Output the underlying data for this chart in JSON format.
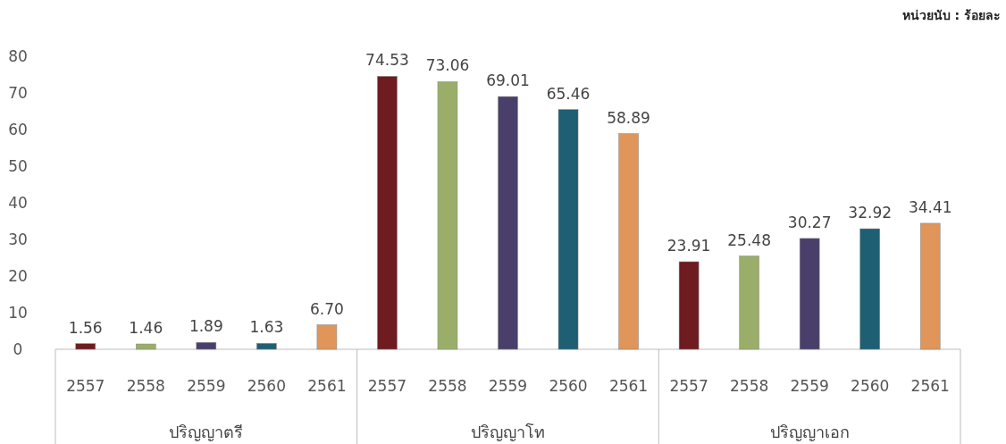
{
  "chart_data": {
    "type": "bar",
    "categories": [
      "ปริญญาตรี",
      "ปริญญาโท",
      "ปริญญาเอก"
    ],
    "series": [
      {
        "name": "2557",
        "color": "#6e1c1f",
        "values": [
          1.56,
          74.53,
          23.91
        ],
        "value_labels": [
          "1.56",
          "74.53",
          "23.91"
        ]
      },
      {
        "name": "2558",
        "color": "#9aae6a",
        "values": [
          1.46,
          73.06,
          25.48
        ],
        "value_labels": [
          "1.46",
          "73.06",
          "25.48"
        ]
      },
      {
        "name": "2559",
        "color": "#4a3f6b",
        "values": [
          1.89,
          69.01,
          30.27
        ],
        "value_labels": [
          "1.89",
          "69.01",
          "30.27"
        ]
      },
      {
        "name": "2560",
        "color": "#1f5f73",
        "values": [
          1.63,
          65.46,
          32.92
        ],
        "value_labels": [
          "1.63",
          "65.46",
          "32.92"
        ]
      },
      {
        "name": "2561",
        "color": "#e0955a",
        "values": [
          6.7,
          58.89,
          34.41
        ],
        "value_labels": [
          "6.70",
          "58.89",
          "34.41"
        ]
      }
    ],
    "ylim": [
      0,
      80
    ],
    "yticks": [
      0,
      10,
      20,
      30,
      40,
      50,
      60,
      70,
      80
    ],
    "annotations": [
      "หน่วยนับ : ร้อยละ"
    ]
  }
}
